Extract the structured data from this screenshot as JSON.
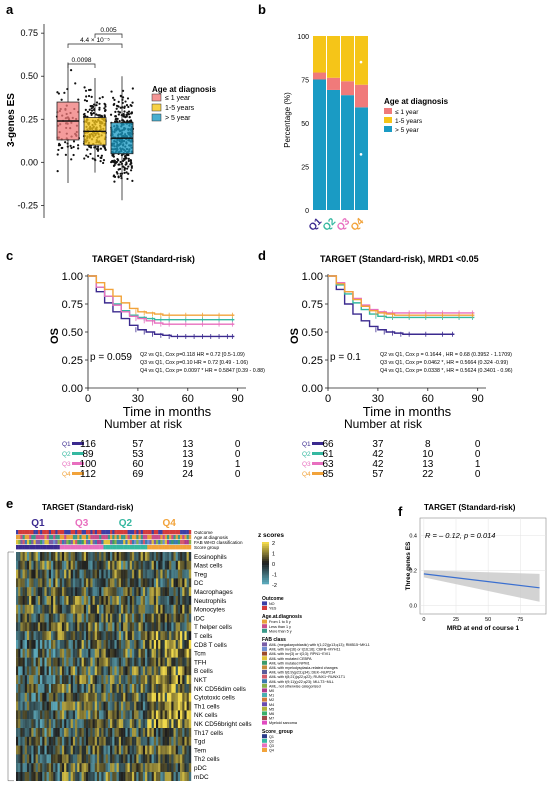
{
  "colors": {
    "le1": "#f07a7a",
    "y15": "#f5c518",
    "gt5": "#1a9bc4",
    "q1": "#3b2a8f",
    "q2": "#35b8a0",
    "q3": "#e86fbf",
    "q4": "#f2a33a",
    "heat_low": "#5aa7b8",
    "heat_high": "#f0d84a",
    "outcome_no": "#3b3fa6",
    "outcome_yes": "#d33b3b"
  },
  "panels": {
    "a": "a",
    "b": "b",
    "c": "c",
    "d": "d",
    "e": "e",
    "f": "f"
  },
  "chart_data": [
    {
      "type": "box",
      "panel": "a",
      "ylabel": "3-genes ES",
      "ylim": [
        -0.3,
        0.78
      ],
      "yticks": [
        "0.75",
        "0.50",
        "0.25",
        "0.00",
        "-0.25"
      ],
      "ytick_values": [
        0.75,
        0.5,
        0.25,
        0.0,
        -0.25
      ],
      "legend_title": "Age at diagnosis",
      "series": [
        {
          "name": "≤ 1 year",
          "q1": 0.13,
          "median": 0.24,
          "q3": 0.35,
          "whisker_low": -0.12,
          "whisker_high": 0.58
        },
        {
          "name": "1-5 years",
          "q1": 0.1,
          "median": 0.18,
          "q3": 0.26,
          "whisker_low": -0.06,
          "whisker_high": 0.49
        },
        {
          "name": "> 5 year",
          "q1": 0.05,
          "median": 0.14,
          "q3": 0.23,
          "whisker_low": -0.22,
          "whisker_high": 0.5
        }
      ],
      "comparisons": [
        {
          "label": "0.0098",
          "from": 0,
          "to": 1
        },
        {
          "label": "4.4 × 10⁻⁵",
          "from": 0,
          "to": 2
        },
        {
          "label": "0.005",
          "from": 1,
          "to": 2
        }
      ]
    },
    {
      "type": "bar",
      "panel": "b",
      "ylabel": "Percentage (%)",
      "categories": [
        "Q1",
        "Q2",
        "Q3",
        "Q4"
      ],
      "yticks": [
        "0",
        "25",
        "50",
        "75",
        "100"
      ],
      "ytick_values": [
        0,
        25,
        50,
        75,
        100
      ],
      "legend_title": "Age at diagnosis",
      "series": [
        {
          "name": "> 5 year",
          "values": [
            75,
            69,
            66,
            59
          ]
        },
        {
          "name": "≤ 1 year",
          "values": [
            4,
            7,
            8,
            13
          ]
        },
        {
          "name": "1-5 years",
          "values": [
            21,
            24,
            26,
            28
          ]
        }
      ]
    },
    {
      "type": "line",
      "panel": "c",
      "title": "TARGET (Standard-risk)",
      "ylabel": "OS",
      "xlabel": "Time in months",
      "xticks": [
        "0",
        "30",
        "60",
        "90"
      ],
      "xtick_values": [
        0,
        30,
        60,
        90
      ],
      "yticks": [
        "1.00",
        "0.75",
        "0.50",
        "0.25",
        "0.00"
      ],
      "ytick_values": [
        1.0,
        0.75,
        0.5,
        0.25,
        0.0
      ],
      "xlim": [
        0,
        95
      ],
      "pvalue": "p = 0.059",
      "stats": [
        "Q2 vs Q1, Cox p=0.118 HR = 0.72 [0.5-1.09)",
        "Q3 vs Q1, Cox p=0.10 HR = 0.72 [0.49 - 1.06)",
        "Q4 vs Q1, Cox p= 0.0097 * HR = 0.5847 [0.39 - 0.88)"
      ],
      "series": [
        {
          "name": "Q1",
          "x": [
            0,
            5,
            10,
            15,
            20,
            25,
            30,
            35,
            40,
            45,
            50,
            55,
            60,
            65,
            70,
            75,
            80,
            85,
            88
          ],
          "y": [
            1.0,
            0.86,
            0.76,
            0.68,
            0.62,
            0.56,
            0.52,
            0.5,
            0.48,
            0.47,
            0.46,
            0.46,
            0.46,
            0.46,
            0.46,
            0.46,
            0.46,
            0.46,
            0.46
          ]
        },
        {
          "name": "Q2",
          "x": [
            0,
            5,
            10,
            15,
            20,
            25,
            30,
            35,
            40,
            45,
            50,
            60,
            70,
            80,
            88
          ],
          "y": [
            1.0,
            0.9,
            0.82,
            0.75,
            0.69,
            0.65,
            0.63,
            0.62,
            0.61,
            0.61,
            0.61,
            0.61,
            0.61,
            0.61,
            0.61
          ]
        },
        {
          "name": "Q3",
          "x": [
            0,
            5,
            10,
            15,
            20,
            25,
            30,
            35,
            40,
            45,
            50,
            60,
            70,
            80,
            88
          ],
          "y": [
            1.0,
            0.9,
            0.82,
            0.74,
            0.68,
            0.64,
            0.62,
            0.6,
            0.58,
            0.57,
            0.57,
            0.57,
            0.57,
            0.57,
            0.57
          ]
        },
        {
          "name": "Q4",
          "x": [
            0,
            5,
            10,
            15,
            20,
            25,
            30,
            35,
            40,
            45,
            50,
            60,
            70,
            80,
            88
          ],
          "y": [
            1.0,
            0.94,
            0.88,
            0.82,
            0.76,
            0.71,
            0.68,
            0.67,
            0.66,
            0.65,
            0.65,
            0.65,
            0.65,
            0.65,
            0.65
          ]
        }
      ],
      "risk_table": {
        "title": "Number at risk",
        "rows": [
          {
            "name": "Q1",
            "values": [
              "116",
              "57",
              "13",
              "0"
            ]
          },
          {
            "name": "Q2",
            "values": [
              "89",
              "53",
              "13",
              "0"
            ]
          },
          {
            "name": "Q3",
            "values": [
              "100",
              "60",
              "19",
              "1"
            ]
          },
          {
            "name": "Q4",
            "values": [
              "112",
              "69",
              "24",
              "0"
            ]
          }
        ]
      }
    },
    {
      "type": "line",
      "panel": "d",
      "title": "TARGET (Standard-risk), MRD1 <0.05",
      "ylabel": "OS",
      "xlabel": "Time in months",
      "xticks": [
        "0",
        "30",
        "60",
        "90"
      ],
      "xtick_values": [
        0,
        30,
        60,
        90
      ],
      "yticks": [
        "1.00",
        "0.75",
        "0.50",
        "0.25",
        "0.00"
      ],
      "ytick_values": [
        1.0,
        0.75,
        0.5,
        0.25,
        0.0
      ],
      "xlim": [
        0,
        95
      ],
      "pvalue": "p = 0.1",
      "stats": [
        "Q2 vs Q1, Cox p = 0.1644 , HR = 0.68 (0.3952 - 1.1709)",
        "Q3 vs Q1, Cox p= 0.0462 *, HR = 0.5664  (0.324 -0.99)",
        "Q4 vs Q1, Cox p= 0.0338 *, HR = 0.5624  (0.3401 - 0.96)"
      ],
      "series": [
        {
          "name": "Q1",
          "x": [
            0,
            5,
            10,
            15,
            20,
            25,
            30,
            35,
            40,
            45,
            50,
            60,
            70,
            76
          ],
          "y": [
            1.0,
            0.88,
            0.75,
            0.66,
            0.6,
            0.55,
            0.52,
            0.5,
            0.49,
            0.48,
            0.48,
            0.48,
            0.48,
            0.48
          ]
        },
        {
          "name": "Q2",
          "x": [
            0,
            5,
            10,
            15,
            20,
            25,
            30,
            35,
            40,
            50,
            60,
            70,
            80,
            88
          ],
          "y": [
            1.0,
            0.92,
            0.84,
            0.76,
            0.7,
            0.66,
            0.64,
            0.63,
            0.63,
            0.63,
            0.63,
            0.63,
            0.63,
            0.63
          ]
        },
        {
          "name": "Q3",
          "x": [
            0,
            5,
            10,
            15,
            20,
            25,
            30,
            35,
            40,
            50,
            60,
            70,
            80,
            88
          ],
          "y": [
            1.0,
            0.94,
            0.86,
            0.8,
            0.74,
            0.7,
            0.68,
            0.67,
            0.67,
            0.67,
            0.67,
            0.67,
            0.67,
            0.67
          ]
        },
        {
          "name": "Q4",
          "x": [
            0,
            5,
            10,
            15,
            20,
            25,
            30,
            35,
            40,
            50,
            60,
            70,
            80,
            88
          ],
          "y": [
            1.0,
            0.93,
            0.86,
            0.79,
            0.73,
            0.69,
            0.67,
            0.66,
            0.65,
            0.65,
            0.65,
            0.65,
            0.65,
            0.65
          ]
        }
      ],
      "risk_table": {
        "title": "Number at risk",
        "rows": [
          {
            "name": "Q1",
            "values": [
              "66",
              "37",
              "8",
              "0"
            ]
          },
          {
            "name": "Q2",
            "values": [
              "61",
              "42",
              "10",
              "0"
            ]
          },
          {
            "name": "Q3",
            "values": [
              "63",
              "42",
              "13",
              "1"
            ]
          },
          {
            "name": "Q4",
            "values": [
              "85",
              "57",
              "22",
              "0"
            ]
          }
        ]
      }
    },
    {
      "type": "heatmap",
      "panel": "e",
      "title": "TARGET (Standard-risk)",
      "column_groups": [
        "Q1",
        "Q3",
        "Q2",
        "Q4"
      ],
      "annotation_tracks": [
        "Outcome",
        "Age at diagnosis",
        "FAB WHO classification",
        "Score group"
      ],
      "rows": [
        "Eosinophils",
        "Mast cells",
        "Treg",
        "DC",
        "Macrophages",
        "Neutrophils",
        "Monocytes",
        "iDC",
        "T helper cells",
        "T cells",
        "CD8 T cells",
        "Tcm",
        "TFH",
        "B cells",
        "NKT",
        "NK CD56dim cells",
        "Cytotoxic cells",
        "Th1 cells",
        "NK cells",
        "NK CD56bright cells",
        "Th17 cells",
        "Tgd",
        "Tem",
        "Th2 cells",
        "pDC",
        "mDC"
      ],
      "colorbar": {
        "title": "z scores",
        "ticks": [
          "2",
          "1",
          "0",
          "-1",
          "-2"
        ]
      },
      "legends": [
        {
          "title": "Outcome",
          "items": [
            {
              "label": "NO",
              "color": "#3b3fa6"
            },
            {
              "label": "YES",
              "color": "#d33b3b"
            }
          ]
        },
        {
          "title": "Age.at.diagnosis",
          "items": [
            {
              "label": "From 1 to 5 y",
              "color": "#e8a23a"
            },
            {
              "label": "Less than 1 y",
              "color": "#c94e8c"
            },
            {
              "label": "More than 5 y",
              "color": "#3a9a8a"
            }
          ]
        },
        {
          "title": "FAB class",
          "items": [
            {
              "label": "AML (megakaryoblastic) with t(1;22)(p13;q13); RMB15~MKL1",
              "color": "#7b5ea7"
            },
            {
              "label": "AML with inv(16) or t(16;16); CBFB~MYH11",
              "color": "#6f8fd0"
            },
            {
              "label": "AML with inv(3) or t(3;3); RPN1~EVI1",
              "color": "#9c4a2a"
            },
            {
              "label": "AML with mutated CEBPA",
              "color": "#e0c23a"
            },
            {
              "label": "AML with mutated NPM1",
              "color": "#3a9a6a"
            },
            {
              "label": "AML with myelodysplasia-related changes",
              "color": "#c48a3a"
            },
            {
              "label": "AML with t(6;9)(p23;q34); DEK~NUP214",
              "color": "#5a5a9a"
            },
            {
              "label": "AML with t(8;21)(q22;q22); RUNX1~RUNX1T1",
              "color": "#d35a6a"
            },
            {
              "label": "AML with t(9;11)(p22;q23); MLLT3~MLL",
              "color": "#3a7ab0"
            },
            {
              "label": "AML, not otherwise categorized",
              "color": "#8ab04a"
            },
            {
              "label": "M0",
              "color": "#b03a8a"
            },
            {
              "label": "M1",
              "color": "#4ab0b0"
            },
            {
              "label": "M2",
              "color": "#d07a3a"
            },
            {
              "label": "M4",
              "color": "#6a4ab0"
            },
            {
              "label": "M5",
              "color": "#b0b03a"
            },
            {
              "label": "M6",
              "color": "#3ab06a"
            },
            {
              "label": "M7",
              "color": "#a04a4a"
            },
            {
              "label": "Myeloid sarcoma",
              "color": "#e04ac0"
            }
          ]
        },
        {
          "title": "Score_group",
          "items": [
            {
              "label": "Q1",
              "color": "#2a3a8a"
            },
            {
              "label": "Q2",
              "color": "#35b8a0"
            },
            {
              "label": "Q3",
              "color": "#e86fbf"
            },
            {
              "label": "Q4",
              "color": "#f2a33a"
            }
          ]
        }
      ]
    },
    {
      "type": "scatter",
      "panel": "f",
      "title": "TARGET (Standard-risk)",
      "annotation": "R = – 0.12, p = 0.014",
      "xlabel": "MRD at end of course 1",
      "ylabel": "Three genes ES",
      "xticks": [
        "0",
        "25",
        "50",
        "75"
      ],
      "xtick_values": [
        0,
        25,
        50,
        75
      ],
      "yticks": [
        "0.4",
        "0.2",
        "0.0"
      ],
      "ytick_values": [
        0.4,
        0.2,
        0.0
      ],
      "xlim": [
        -3,
        95
      ],
      "ylim": [
        -0.05,
        0.5
      ],
      "fit": {
        "x": [
          0,
          90
        ],
        "y": [
          0.18,
          0.1
        ],
        "ci_low": [
          0.16,
          0.02
        ],
        "ci_high": [
          0.2,
          0.18
        ]
      }
    }
  ]
}
